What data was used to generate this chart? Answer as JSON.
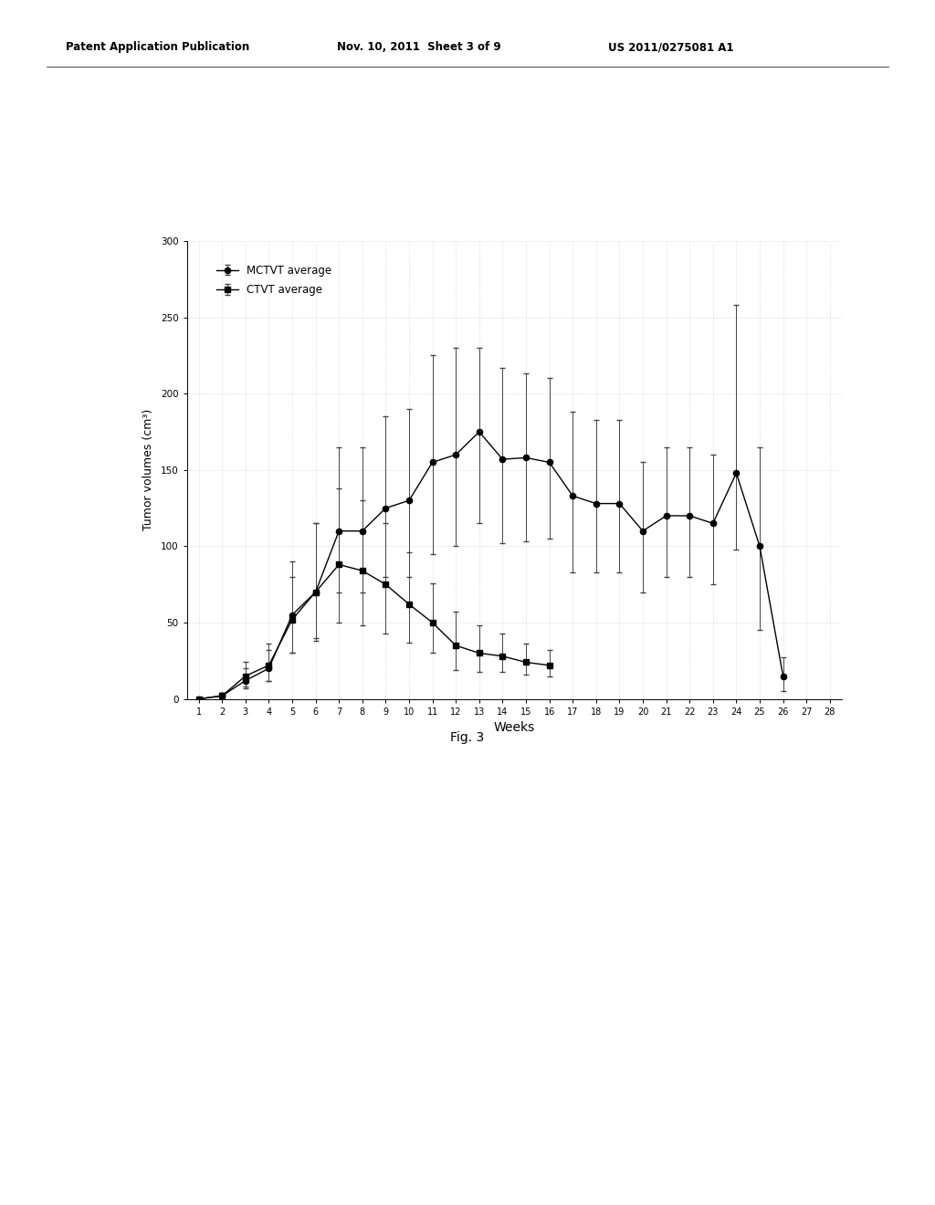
{
  "mctvt_weeks": [
    1,
    2,
    3,
    4,
    5,
    6,
    7,
    8,
    9,
    10,
    11,
    12,
    13,
    14,
    15,
    16,
    17,
    18,
    19,
    20,
    21,
    22,
    23,
    24,
    25,
    26,
    27,
    28
  ],
  "mctvt_values": [
    0,
    2,
    12,
    20,
    55,
    70,
    110,
    110,
    125,
    130,
    155,
    160,
    175,
    157,
    158,
    155,
    133,
    128,
    128,
    110,
    120,
    120,
    115,
    148,
    100,
    15,
    null,
    null
  ],
  "mctvt_err_low": [
    0,
    1,
    5,
    8,
    25,
    30,
    40,
    40,
    45,
    50,
    60,
    60,
    60,
    55,
    55,
    50,
    50,
    45,
    45,
    40,
    40,
    40,
    40,
    50,
    55,
    10,
    null,
    null
  ],
  "mctvt_err_high": [
    0,
    2,
    8,
    12,
    35,
    45,
    55,
    55,
    60,
    60,
    70,
    70,
    55,
    60,
    55,
    55,
    55,
    55,
    55,
    45,
    45,
    45,
    45,
    110,
    65,
    12,
    null,
    null
  ],
  "ctvt_weeks": [
    1,
    2,
    3,
    4,
    5,
    6,
    7,
    8,
    9,
    10,
    11,
    12,
    13,
    14,
    15,
    16
  ],
  "ctvt_values": [
    0,
    2,
    15,
    22,
    52,
    70,
    88,
    84,
    75,
    62,
    50,
    35,
    30,
    28,
    24,
    22
  ],
  "ctvt_err_low": [
    0,
    1,
    7,
    10,
    22,
    32,
    38,
    36,
    32,
    25,
    20,
    16,
    12,
    10,
    8,
    7
  ],
  "ctvt_err_high": [
    0,
    2,
    9,
    14,
    28,
    45,
    50,
    46,
    40,
    34,
    26,
    22,
    18,
    15,
    12,
    10
  ],
  "ylabel": "Tumor volumes (cm³)",
  "xlabel": "Weeks",
  "ylim": [
    0,
    300
  ],
  "yticks": [
    0,
    50,
    100,
    150,
    200,
    250,
    300
  ],
  "xlim": [
    0.5,
    28.5
  ],
  "xticks": [
    1,
    2,
    3,
    4,
    5,
    6,
    7,
    8,
    9,
    10,
    11,
    12,
    13,
    14,
    15,
    16,
    17,
    18,
    19,
    20,
    21,
    22,
    23,
    24,
    25,
    26,
    27,
    28
  ],
  "legend_mctvt": "MCTVT average",
  "legend_ctvt": "CTVT average",
  "fig_caption": "Fig. 3",
  "header_left": "Patent Application Publication",
  "header_mid": "Nov. 10, 2011  Sheet 3 of 9",
  "header_right": "US 2011/0275081 A1",
  "bg_color": "#ffffff",
  "line_color": "#000000",
  "error_color": "#444444"
}
